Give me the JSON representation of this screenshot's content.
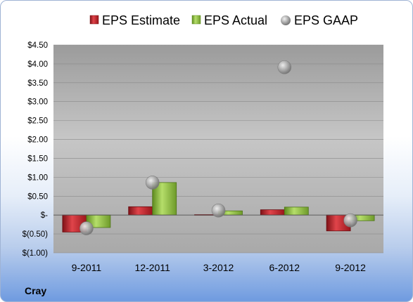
{
  "chart_data": {
    "type": "bar",
    "categories": [
      "9-2011",
      "12-2011",
      "3-2012",
      "6-2012",
      "9-2012"
    ],
    "series": [
      {
        "name": "EPS Estimate",
        "kind": "bar",
        "color": "#c0262d",
        "values": [
          -0.45,
          0.22,
          0.01,
          0.14,
          -0.42
        ]
      },
      {
        "name": "EPS Actual",
        "kind": "bar",
        "color": "#8fbf3a",
        "values": [
          -0.33,
          0.86,
          0.11,
          0.21,
          -0.15
        ]
      },
      {
        "name": "EPS GAAP",
        "kind": "marker",
        "color": "#a8a8a8",
        "values": [
          -0.35,
          0.86,
          0.12,
          3.91,
          -0.14
        ]
      }
    ],
    "yticks": [
      "$4.50",
      "$4.00",
      "$3.50",
      "$3.00",
      "$2.50",
      "$2.00",
      "$1.50",
      "$1.00",
      "$0.50",
      "$-",
      "$(0.50)",
      "$(1.00)"
    ],
    "ylim": [
      -1.0,
      4.5
    ],
    "ystep": 0.5,
    "grid": true,
    "legend_position": "top",
    "company": "Cray"
  }
}
